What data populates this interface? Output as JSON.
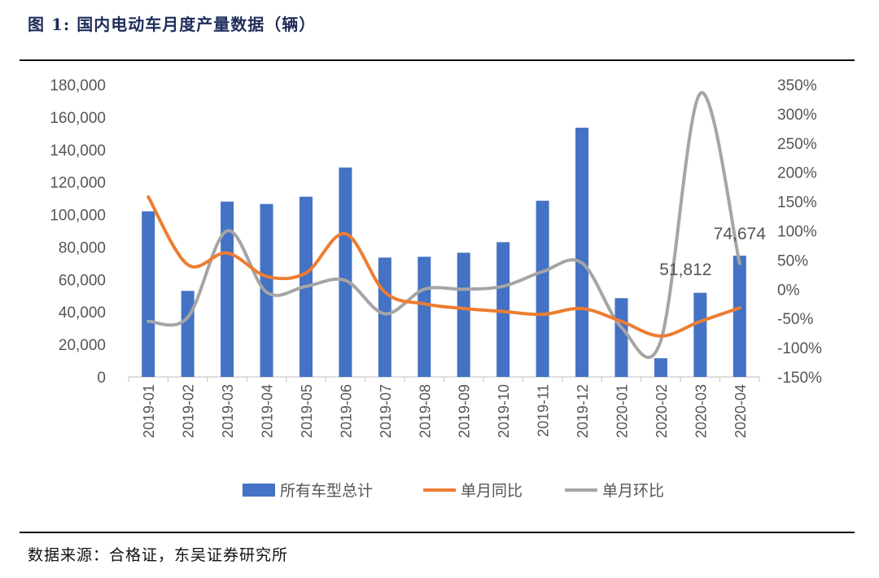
{
  "figure": {
    "title": "图 1:  国内电动车月度产量数据（辆）",
    "source": "数据来源：合格证，东吴证券研究所"
  },
  "colors": {
    "bar": "#4472C4",
    "yoy": "#ED7D31",
    "mom": "#A5A5A5"
  },
  "chart_data": {
    "type": "bar",
    "categories": [
      "2019-01",
      "2019-02",
      "2019-03",
      "2019-04",
      "2019-05",
      "2019-06",
      "2019-07",
      "2019-08",
      "2019-09",
      "2019-10",
      "2019-11",
      "2019-12",
      "2020-01",
      "2020-02",
      "2020-03",
      "2020-04"
    ],
    "series": [
      {
        "name": "所有车型总计",
        "type": "bar",
        "axis": "left",
        "values": [
          102000,
          53000,
          108000,
          106500,
          111000,
          129000,
          73500,
          74000,
          76500,
          83000,
          108500,
          153500,
          48500,
          11500,
          51812,
          74674
        ]
      },
      {
        "name": "单月同比",
        "type": "line",
        "axis": "right",
        "values": [
          158,
          42,
          62,
          22,
          28,
          95,
          -5,
          -25,
          -33,
          -38,
          -43,
          -33,
          -55,
          -80,
          -55,
          -32
        ]
      },
      {
        "name": "单月环比",
        "type": "line",
        "axis": "right",
        "values": [
          -55,
          -48,
          100,
          -5,
          5,
          15,
          -42,
          0,
          0,
          5,
          30,
          45,
          -65,
          -88,
          335,
          44
        ]
      }
    ],
    "data_labels": [
      {
        "category": "2020-03",
        "text": "51,812"
      },
      {
        "category": "2020-04",
        "text": "74,674"
      }
    ],
    "y_left": {
      "ylim": [
        0,
        180000
      ],
      "ticks": [
        "0",
        "20,000",
        "40,000",
        "60,000",
        "80,000",
        "100,000",
        "120,000",
        "140,000",
        "160,000",
        "180,000"
      ]
    },
    "y_right": {
      "ylim": [
        -150,
        350
      ],
      "ticks": [
        "-150%",
        "-100%",
        "-50%",
        "0%",
        "50%",
        "100%",
        "150%",
        "200%",
        "250%",
        "300%",
        "350%"
      ]
    },
    "grid": false,
    "legend": "bottom"
  }
}
